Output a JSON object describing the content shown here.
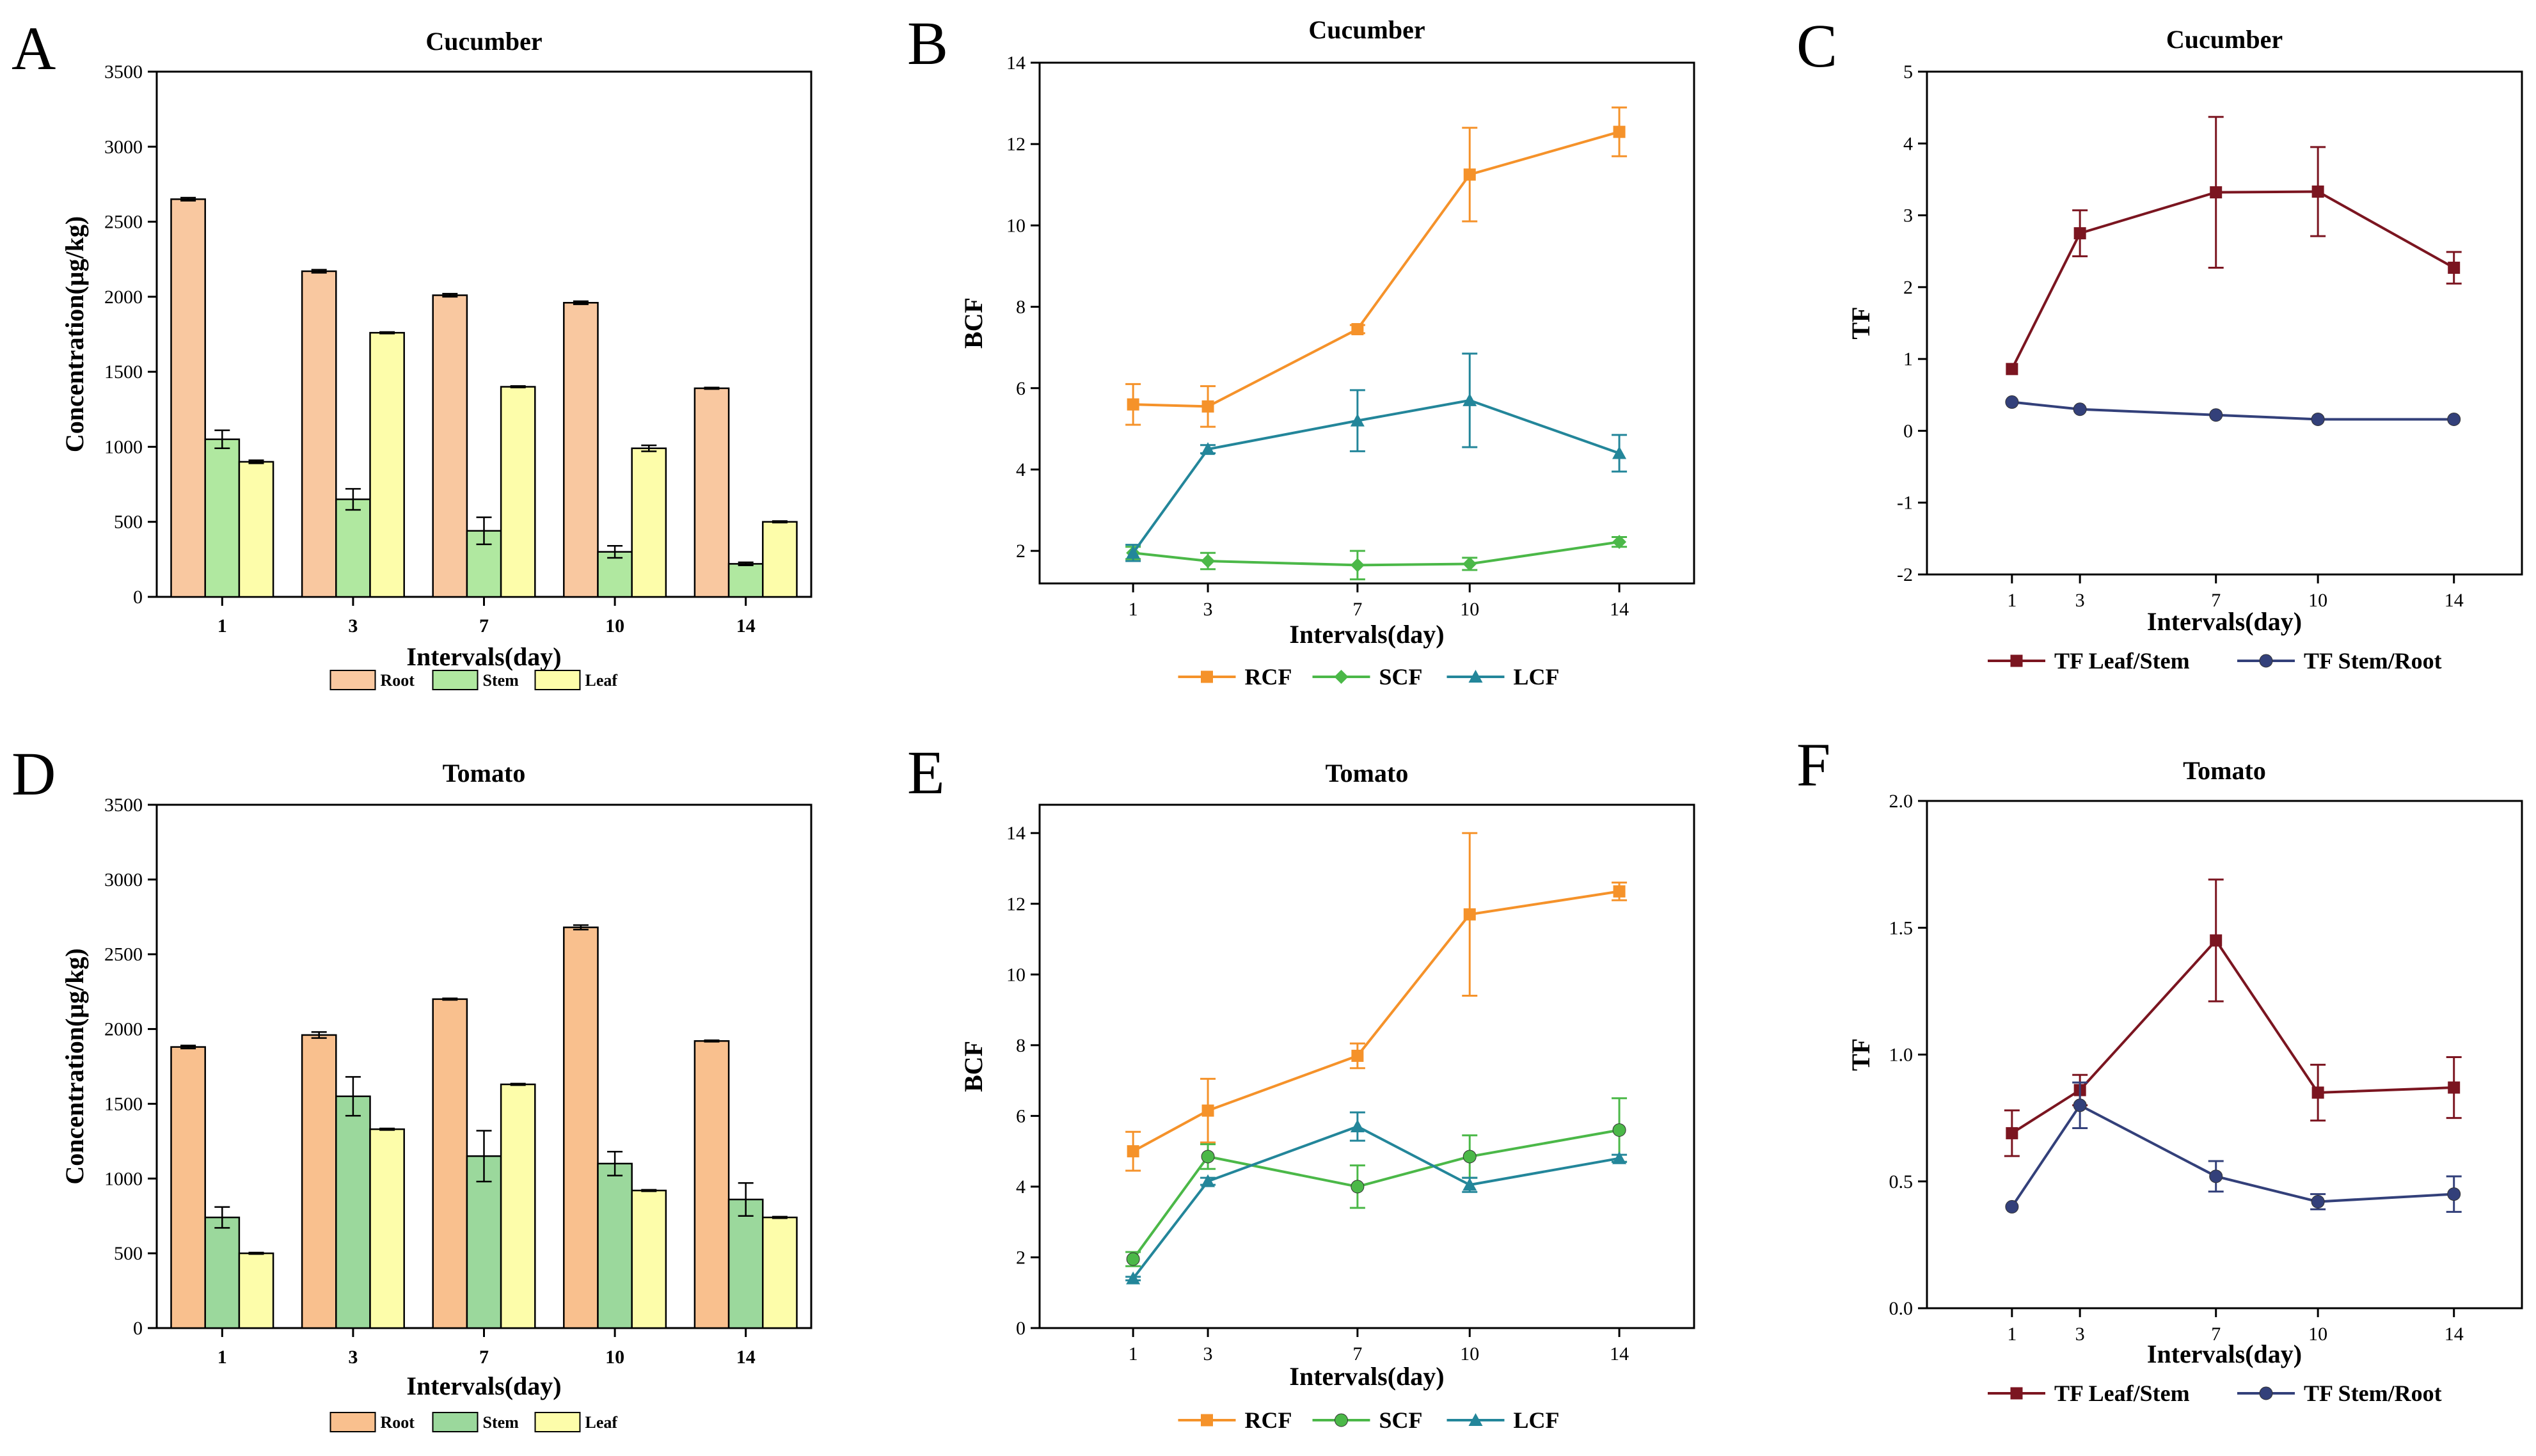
{
  "panels": [
    {
      "letter": "A"
    },
    {
      "letter": "B"
    },
    {
      "letter": "C"
    },
    {
      "letter": "D"
    },
    {
      "letter": "E"
    },
    {
      "letter": "F"
    }
  ],
  "chart_data": [
    {
      "id": "A",
      "type": "bar",
      "title": "Cucumber",
      "xlabel": "Intervals(day)",
      "ylabel": "Concentration(μg/kg)",
      "categories": [
        "1",
        "3",
        "7",
        "10",
        "14"
      ],
      "ylim": [
        0,
        3500
      ],
      "yticks": [
        0,
        500,
        1000,
        1500,
        2000,
        2500,
        3000,
        3500
      ],
      "series": [
        {
          "name": "Root",
          "color": "#f9c8a0",
          "values": [
            2650,
            2170,
            2010,
            1960,
            1390
          ],
          "errors": [
            10,
            10,
            10,
            10,
            5
          ]
        },
        {
          "name": "Stem",
          "color": "#b0e8a0",
          "values": [
            1050,
            650,
            440,
            300,
            220
          ],
          "errors": [
            60,
            70,
            90,
            40,
            10
          ]
        },
        {
          "name": "Leaf",
          "color": "#fdfdaa",
          "values": [
            900,
            1760,
            1400,
            990,
            500
          ],
          "errors": [
            10,
            5,
            5,
            20,
            5
          ]
        }
      ]
    },
    {
      "id": "B",
      "type": "line",
      "title": "Cucumber",
      "xlabel": "Intervals(day)",
      "ylabel": "BCF",
      "x": [
        1,
        3,
        7,
        10,
        14
      ],
      "xticks": [
        "1",
        "3",
        "7",
        "10",
        "14"
      ],
      "xlim": [
        -1.5,
        16
      ],
      "ylim": [
        1.2,
        14
      ],
      "yticks": [
        2,
        4,
        6,
        8,
        10,
        12,
        14
      ],
      "series": [
        {
          "name": "RCF",
          "color": "#f5922a",
          "marker": "square",
          "values": [
            5.6,
            5.55,
            7.45,
            11.25,
            12.3
          ],
          "errors": [
            0.5,
            0.5,
            0.1,
            1.15,
            0.6
          ]
        },
        {
          "name": "SCF",
          "color": "#4bb848",
          "marker": "diamond",
          "values": [
            1.95,
            1.75,
            1.65,
            1.68,
            2.22
          ],
          "errors": [
            0.15,
            0.2,
            0.35,
            0.15,
            0.12
          ]
        },
        {
          "name": "LCF",
          "color": "#23869a",
          "marker": "triangle",
          "values": [
            1.95,
            4.5,
            5.2,
            5.7,
            4.4
          ],
          "errors": [
            0.2,
            0.1,
            0.75,
            1.15,
            0.45
          ]
        }
      ]
    },
    {
      "id": "C",
      "type": "line",
      "title": "Cucumber",
      "xlabel": "Intervals(day)",
      "ylabel": "TF",
      "x": [
        1,
        3,
        7,
        10,
        14
      ],
      "xticks": [
        "1",
        "3",
        "7",
        "10",
        "14"
      ],
      "xlim": [
        -1.5,
        16
      ],
      "ylim": [
        -2,
        5
      ],
      "yticks": [
        -2,
        -1,
        0,
        1,
        2,
        3,
        4,
        5
      ],
      "series": [
        {
          "name": "TF Leaf/Stem",
          "color": "#7b1520",
          "marker": "square",
          "values": [
            0.86,
            2.75,
            3.32,
            3.33,
            2.27
          ],
          "errors": [
            0,
            0.32,
            1.05,
            0.62,
            0.22
          ]
        },
        {
          "name": "TF Stem/Root",
          "color": "#33407a",
          "marker": "circle",
          "values": [
            0.4,
            0.3,
            0.22,
            0.16,
            0.16
          ],
          "errors": [
            0,
            0,
            0,
            0,
            0
          ]
        }
      ]
    },
    {
      "id": "D",
      "type": "bar",
      "title": "Tomato",
      "xlabel": "Intervals(day)",
      "ylabel": "Concentration(μg/kg)",
      "categories": [
        "1",
        "3",
        "7",
        "10",
        "14"
      ],
      "ylim": [
        0,
        3500
      ],
      "yticks": [
        0,
        500,
        1000,
        1500,
        2000,
        2500,
        3000,
        3500
      ],
      "series": [
        {
          "name": "Root",
          "color": "#f9c08e",
          "values": [
            1880,
            1960,
            2200,
            2680,
            1920
          ],
          "errors": [
            10,
            20,
            5,
            15,
            5
          ]
        },
        {
          "name": "Stem",
          "color": "#9bd89c",
          "values": [
            740,
            1550,
            1150,
            1100,
            860
          ],
          "errors": [
            70,
            130,
            170,
            80,
            110
          ]
        },
        {
          "name": "Leaf",
          "color": "#fdfdaa",
          "values": [
            500,
            1330,
            1630,
            920,
            740
          ],
          "errors": [
            5,
            5,
            5,
            5,
            5
          ]
        }
      ]
    },
    {
      "id": "E",
      "type": "line",
      "title": "Tomato",
      "xlabel": "Intervals(day)",
      "ylabel": "BCF",
      "x": [
        1,
        3,
        7,
        10,
        14
      ],
      "xticks": [
        "1",
        "3",
        "7",
        "10",
        "14"
      ],
      "xlim": [
        -1.5,
        16
      ],
      "ylim": [
        0,
        14.8
      ],
      "yticks": [
        0,
        2,
        4,
        6,
        8,
        10,
        12,
        14
      ],
      "series": [
        {
          "name": "RCF",
          "color": "#f5922a",
          "marker": "square",
          "values": [
            5.0,
            6.15,
            7.7,
            11.7,
            12.35
          ],
          "errors": [
            0.55,
            0.9,
            0.35,
            2.3,
            0.25
          ]
        },
        {
          "name": "SCF",
          "color": "#4bb848",
          "marker": "circle",
          "values": [
            1.95,
            4.85,
            4.0,
            4.85,
            5.6
          ],
          "errors": [
            0.2,
            0.35,
            0.6,
            0.6,
            0.9
          ]
        },
        {
          "name": "LCF",
          "color": "#23869a",
          "marker": "triangle",
          "values": [
            1.4,
            4.15,
            5.7,
            4.05,
            4.8
          ],
          "errors": [
            0.05,
            0.1,
            0.4,
            0.2,
            0.1
          ]
        }
      ]
    },
    {
      "id": "F",
      "type": "line",
      "title": "Tomato",
      "xlabel": "Intervals(day)",
      "ylabel": "TF",
      "x": [
        1,
        3,
        7,
        10,
        14
      ],
      "xticks": [
        "1",
        "3",
        "7",
        "10",
        "14"
      ],
      "xlim": [
        -1.5,
        16
      ],
      "ylim": [
        0,
        2.0
      ],
      "yticks": [
        0.0,
        0.5,
        1.0,
        1.5,
        2.0
      ],
      "ytick_labels": [
        "0.0",
        "0.5",
        "1.0",
        "1.5",
        "2.0"
      ],
      "series": [
        {
          "name": "TF Leaf/Stem",
          "color": "#7b1520",
          "marker": "square",
          "values": [
            0.69,
            0.86,
            1.45,
            0.85,
            0.87
          ],
          "errors": [
            0.09,
            0.06,
            0.24,
            0.11,
            0.12
          ]
        },
        {
          "name": "TF Stem/Root",
          "color": "#33407a",
          "marker": "circle",
          "values": [
            0.4,
            0.8,
            0.52,
            0.42,
            0.45
          ],
          "errors": [
            0,
            0.09,
            0.06,
            0.03,
            0.07
          ]
        }
      ]
    }
  ]
}
